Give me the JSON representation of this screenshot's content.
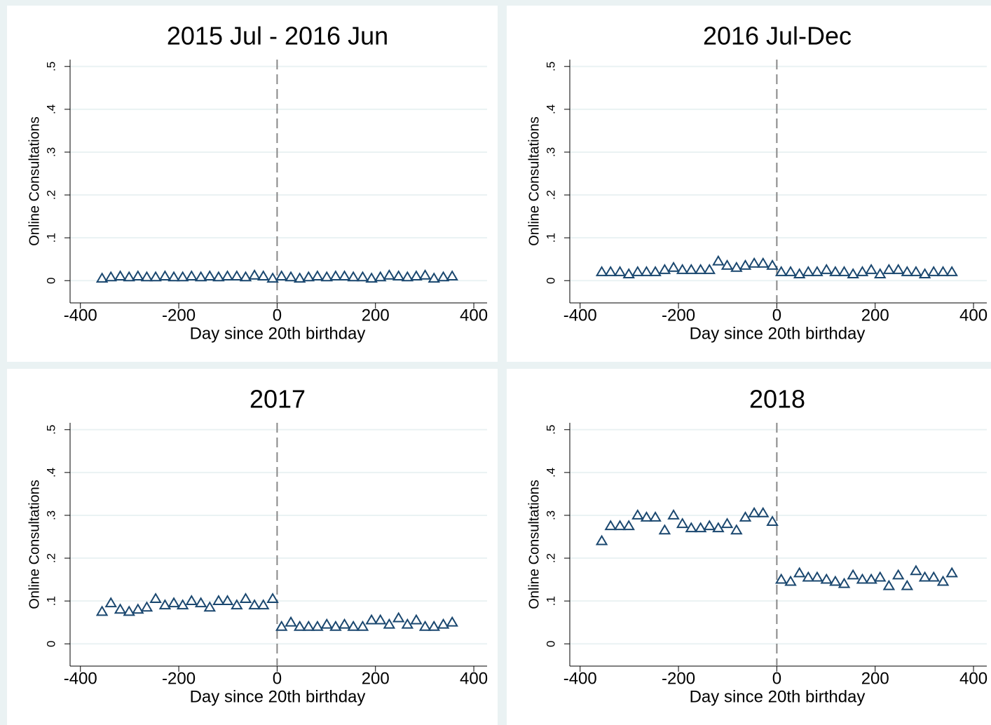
{
  "chart_data": [
    {
      "type": "scatter",
      "title": "2015 Jul - 2016 Jun",
      "xlabel": "Day since 20th birthday",
      "ylabel": "Online Consultations",
      "color": "#1a476f",
      "xline": 0,
      "xlim": [
        -421,
        427
      ],
      "ylim": [
        -0.052,
        0.516
      ],
      "xticks": [
        -400,
        -200,
        0,
        200,
        400
      ],
      "yticks": [
        0,
        {
          "value": 0.1,
          "label": ".1"
        },
        {
          "value": 0.2,
          "label": ".2"
        },
        {
          "value": 0.3,
          "label": ".3"
        },
        {
          "value": 0.4,
          "label": ".4"
        },
        {
          "value": 0.5,
          "label": ".5"
        }
      ],
      "grid": true,
      "x": [
        -356,
        -338,
        -319,
        -301,
        -283,
        -265,
        -247,
        -228,
        -210,
        -192,
        -174,
        -155,
        -137,
        -119,
        -101,
        -82,
        -64,
        -46,
        -28,
        -9,
        9,
        28,
        46,
        64,
        82,
        101,
        119,
        137,
        155,
        174,
        192,
        210,
        228,
        247,
        265,
        283,
        301,
        319,
        338,
        356
      ],
      "values": [
        0.005,
        0.008,
        0.01,
        0.008,
        0.01,
        0.008,
        0.008,
        0.01,
        0.008,
        0.008,
        0.01,
        0.008,
        0.01,
        0.008,
        0.01,
        0.01,
        0.008,
        0.012,
        0.01,
        0.005,
        0.01,
        0.008,
        0.005,
        0.008,
        0.01,
        0.008,
        0.01,
        0.01,
        0.008,
        0.008,
        0.005,
        0.008,
        0.012,
        0.01,
        0.008,
        0.01,
        0.012,
        0.005,
        0.008,
        0.01
      ]
    },
    {
      "type": "scatter",
      "title": "2016 Jul-Dec",
      "xlabel": "Day since 20th birthday",
      "ylabel": "Online Consultations",
      "color": "#1a476f",
      "xline": 0,
      "xlim": [
        -421,
        427
      ],
      "ylim": [
        -0.052,
        0.516
      ],
      "xticks": [
        -400,
        -200,
        0,
        200,
        400
      ],
      "yticks": [
        0,
        {
          "value": 0.1,
          "label": ".1"
        },
        {
          "value": 0.2,
          "label": ".2"
        },
        {
          "value": 0.3,
          "label": ".3"
        },
        {
          "value": 0.4,
          "label": ".4"
        },
        {
          "value": 0.5,
          "label": ".5"
        }
      ],
      "grid": true,
      "x": [
        -356,
        -338,
        -319,
        -301,
        -283,
        -265,
        -247,
        -228,
        -210,
        -192,
        -174,
        -155,
        -137,
        -119,
        -101,
        -82,
        -64,
        -46,
        -28,
        -9,
        9,
        28,
        46,
        64,
        82,
        101,
        119,
        137,
        155,
        174,
        192,
        210,
        228,
        247,
        265,
        283,
        301,
        319,
        338,
        356
      ],
      "values": [
        0.02,
        0.02,
        0.02,
        0.015,
        0.02,
        0.02,
        0.02,
        0.025,
        0.03,
        0.025,
        0.025,
        0.025,
        0.025,
        0.045,
        0.035,
        0.03,
        0.035,
        0.04,
        0.04,
        0.035,
        0.02,
        0.02,
        0.015,
        0.02,
        0.02,
        0.025,
        0.02,
        0.02,
        0.015,
        0.02,
        0.025,
        0.015,
        0.025,
        0.025,
        0.02,
        0.02,
        0.015,
        0.02,
        0.02,
        0.02
      ]
    },
    {
      "type": "scatter",
      "title": "2017",
      "xlabel": "Day since 20th birthday",
      "ylabel": "Online Consultations",
      "color": "#1a476f",
      "xline": 0,
      "xlim": [
        -421,
        427
      ],
      "ylim": [
        -0.052,
        0.516
      ],
      "xticks": [
        -400,
        -200,
        0,
        200,
        400
      ],
      "yticks": [
        0,
        {
          "value": 0.1,
          "label": ".1"
        },
        {
          "value": 0.2,
          "label": ".2"
        },
        {
          "value": 0.3,
          "label": ".3"
        },
        {
          "value": 0.4,
          "label": ".4"
        },
        {
          "value": 0.5,
          "label": ".5"
        }
      ],
      "grid": true,
      "x": [
        -356,
        -338,
        -319,
        -301,
        -283,
        -265,
        -247,
        -228,
        -210,
        -192,
        -174,
        -155,
        -137,
        -119,
        -101,
        -82,
        -64,
        -46,
        -28,
        -9,
        9,
        28,
        46,
        64,
        82,
        101,
        119,
        137,
        155,
        174,
        192,
        210,
        228,
        247,
        265,
        283,
        301,
        319,
        338,
        356
      ],
      "values": [
        0.075,
        0.095,
        0.08,
        0.075,
        0.08,
        0.085,
        0.105,
        0.09,
        0.095,
        0.09,
        0.1,
        0.095,
        0.085,
        0.1,
        0.1,
        0.09,
        0.105,
        0.09,
        0.09,
        0.105,
        0.04,
        0.05,
        0.04,
        0.04,
        0.04,
        0.045,
        0.04,
        0.045,
        0.04,
        0.04,
        0.055,
        0.055,
        0.045,
        0.06,
        0.045,
        0.055,
        0.04,
        0.04,
        0.045,
        0.05
      ]
    },
    {
      "type": "scatter",
      "title": "2018",
      "xlabel": "Day since 20th birthday",
      "ylabel": "Online Consultations",
      "color": "#1a476f",
      "xline": 0,
      "xlim": [
        -421,
        427
      ],
      "ylim": [
        -0.052,
        0.516
      ],
      "xticks": [
        -400,
        -200,
        0,
        200,
        400
      ],
      "yticks": [
        0,
        {
          "value": 0.1,
          "label": ".1"
        },
        {
          "value": 0.2,
          "label": ".2"
        },
        {
          "value": 0.3,
          "label": ".3"
        },
        {
          "value": 0.4,
          "label": ".4"
        },
        {
          "value": 0.5,
          "label": ".5"
        }
      ],
      "grid": true,
      "x": [
        -356,
        -338,
        -319,
        -301,
        -283,
        -265,
        -247,
        -228,
        -210,
        -192,
        -174,
        -155,
        -137,
        -119,
        -101,
        -82,
        -64,
        -46,
        -28,
        -9,
        9,
        28,
        46,
        64,
        82,
        101,
        119,
        137,
        155,
        174,
        192,
        210,
        228,
        247,
        265,
        283,
        301,
        319,
        338,
        356
      ],
      "values": [
        0.24,
        0.275,
        0.275,
        0.275,
        0.3,
        0.295,
        0.295,
        0.265,
        0.3,
        0.28,
        0.27,
        0.27,
        0.275,
        0.27,
        0.28,
        0.265,
        0.295,
        0.305,
        0.305,
        0.285,
        0.15,
        0.145,
        0.165,
        0.155,
        0.155,
        0.15,
        0.145,
        0.14,
        0.16,
        0.15,
        0.15,
        0.155,
        0.135,
        0.16,
        0.135,
        0.17,
        0.155,
        0.155,
        0.145,
        0.165
      ]
    }
  ]
}
